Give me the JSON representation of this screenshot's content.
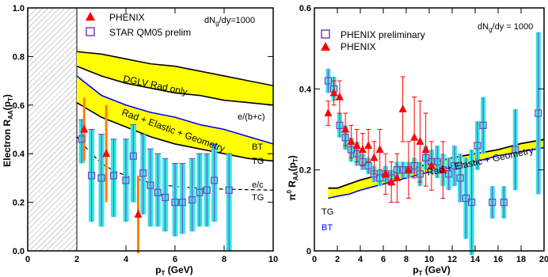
{
  "colors": {
    "phenix": "#ff0000",
    "star": "#7f3fbf",
    "cyan_band": "#33e6e6",
    "yellow_band": "#ffff00",
    "blue_curve": "#0000ff",
    "hatch": "#9a9a9a"
  },
  "chart_data": [
    {
      "type": "scatter",
      "panel": "left",
      "xlabel": "p_T (GeV)",
      "ylabel": "Electron R_AA(p_T)",
      "xlim": [
        0,
        10
      ],
      "ylim": [
        0,
        1.0
      ],
      "xticks": [
        0,
        2,
        4,
        6,
        8,
        10
      ],
      "yticks": [
        0.0,
        0.2,
        0.4,
        0.6,
        0.8,
        1.0
      ],
      "ytick_labels": [
        "0.0",
        "0.2",
        "0.4",
        "0.6",
        "0.8",
        "1.0"
      ],
      "grid": false,
      "legend_position": "top-left",
      "annotation": "dN_g/dy=1000",
      "excluded_region": [
        0,
        2
      ],
      "series": [
        {
          "name": "PHENIX",
          "marker": "triangle",
          "x": [
            2.3,
            3.2,
            4.5
          ],
          "y": [
            0.5,
            0.4,
            0.15
          ],
          "err": [
            0.13,
            0.2,
            0.16
          ]
        },
        {
          "name": "STAR QM05 prelim",
          "marker": "open-square",
          "x": [
            2.2,
            2.6,
            3.0,
            3.5,
            4.0,
            4.3,
            4.7,
            5.0,
            5.3,
            5.6,
            6.0,
            6.3,
            6.7,
            7.0,
            7.3,
            7.6,
            8.2
          ],
          "y": [
            0.46,
            0.31,
            0.3,
            0.31,
            0.29,
            0.39,
            0.32,
            0.27,
            0.24,
            0.22,
            0.2,
            0.2,
            0.21,
            0.24,
            0.25,
            0.29,
            0.25
          ],
          "sys_low": [
            0.36,
            0.12,
            0.1,
            0.14,
            0.12,
            0.2,
            0.15,
            0.1,
            0.1,
            0.08,
            0.06,
            0.07,
            0.08,
            0.1,
            0.1,
            0.12,
            0.0
          ],
          "sys_high": [
            0.54,
            0.5,
            0.48,
            0.46,
            0.46,
            0.52,
            0.48,
            0.42,
            0.4,
            0.38,
            0.36,
            0.36,
            0.38,
            0.4,
            0.4,
            0.44,
            0.4
          ]
        }
      ],
      "bands": [
        {
          "label": "DGLV Rad only",
          "x": [
            2,
            3,
            4,
            5,
            6,
            7,
            8,
            9,
            10
          ],
          "upper": [
            0.82,
            0.81,
            0.79,
            0.77,
            0.76,
            0.74,
            0.72,
            0.7,
            0.68
          ],
          "lower": [
            0.76,
            0.72,
            0.69,
            0.67,
            0.65,
            0.64,
            0.62,
            0.61,
            0.6
          ]
        },
        {
          "label": "Rad + Elastic + Geometry",
          "x": [
            2,
            3,
            4,
            5,
            6,
            7,
            8,
            9,
            10
          ],
          "upper": [
            0.72,
            0.64,
            0.6,
            0.57,
            0.55,
            0.52,
            0.5,
            0.47,
            0.44
          ],
          "lower": [
            0.61,
            0.55,
            0.51,
            0.47,
            0.44,
            0.42,
            0.4,
            0.38,
            0.37
          ]
        }
      ],
      "curve_labels": [
        "e/(b+c)",
        "BT",
        "TG",
        "e/c",
        "TG"
      ],
      "dashed_curve": {
        "x": [
          2,
          2.5,
          3,
          3.5,
          4,
          5,
          6,
          7,
          8,
          9,
          10
        ],
        "y": [
          0.47,
          0.41,
          0.36,
          0.33,
          0.31,
          0.28,
          0.265,
          0.258,
          0.254,
          0.252,
          0.25
        ]
      }
    },
    {
      "type": "scatter",
      "panel": "right",
      "xlabel": "p_T (GeV)",
      "ylabel": "π0 R_AA(p_T)",
      "xlim": [
        0,
        20
      ],
      "ylim": [
        0,
        0.6
      ],
      "xticks": [
        0,
        2,
        4,
        6,
        8,
        10,
        12,
        14,
        16,
        18,
        20
      ],
      "yticks": [
        0.0,
        0.2,
        0.4,
        0.6
      ],
      "ytick_labels": [
        "0",
        "0.2",
        "0.4",
        "0.6"
      ],
      "grid": false,
      "legend_position": "top-left",
      "annotation": "dN_g/dy = 1000",
      "series": [
        {
          "name": "PHENIX preliminary",
          "marker": "open-square",
          "x": [
            1.2,
            1.7,
            2.2,
            2.7,
            3.2,
            3.7,
            4.2,
            4.7,
            5.2,
            5.7,
            6.2,
            6.7,
            7.2,
            7.7,
            8.2,
            8.7,
            9.2,
            9.7,
            10.2,
            10.7,
            11.2,
            11.7,
            12.2,
            12.7,
            13.2,
            13.7,
            14.2,
            14.7,
            15.5,
            16.5,
            17.5,
            19.5
          ],
          "y": [
            0.42,
            0.4,
            0.31,
            0.28,
            0.25,
            0.24,
            0.22,
            0.21,
            0.19,
            0.18,
            0.19,
            0.18,
            0.2,
            0.2,
            0.2,
            0.21,
            0.19,
            0.23,
            0.22,
            0.22,
            0.2,
            0.19,
            0.21,
            0.18,
            0.13,
            0.12,
            0.26,
            0.31,
            0.12,
            0.12,
            0.25,
            0.34
          ],
          "err": [
            0.03,
            0.03,
            0.03,
            0.03,
            0.03,
            0.03,
            0.02,
            0.02,
            0.02,
            0.02,
            0.02,
            0.02,
            0.02,
            0.02,
            0.02,
            0.02,
            0.03,
            0.03,
            0.03,
            0.04,
            0.04,
            0.04,
            0.05,
            0.06,
            0.1,
            0.13,
            0.06,
            0.07,
            0.04,
            0.04,
            0.1,
            0.2
          ]
        },
        {
          "name": "PHENIX",
          "marker": "triangle",
          "x": [
            1.2,
            1.7,
            2.2,
            2.7,
            3.2,
            3.7,
            4.2,
            4.7,
            5.2,
            5.7,
            6.2,
            6.7,
            7.2,
            7.7,
            8.2,
            8.7,
            9.2,
            9.7,
            10.2,
            11.2
          ],
          "y": [
            0.34,
            0.39,
            0.38,
            0.3,
            0.27,
            0.26,
            0.25,
            0.26,
            0.23,
            0.25,
            0.19,
            0.17,
            0.18,
            0.35,
            0.2,
            0.28,
            0.27,
            0.25,
            0.21,
            0.2
          ],
          "err": [
            0.03,
            0.03,
            0.04,
            0.04,
            0.04,
            0.04,
            0.04,
            0.04,
            0.04,
            0.05,
            0.05,
            0.05,
            0.06,
            0.08,
            0.07,
            0.1,
            0.1,
            0.09,
            0.06,
            0.07
          ]
        }
      ],
      "bands": [
        {
          "label": "Rad + Elastic + Geometry",
          "x": [
            1.2,
            2,
            3,
            4,
            6,
            8,
            10,
            12,
            14,
            16,
            18,
            20
          ],
          "upper": [
            0.155,
            0.155,
            0.165,
            0.175,
            0.19,
            0.2,
            0.215,
            0.23,
            0.24,
            0.25,
            0.265,
            0.275
          ],
          "lower": [
            0.13,
            0.135,
            0.14,
            0.15,
            0.165,
            0.18,
            0.195,
            0.21,
            0.22,
            0.235,
            0.245,
            0.255
          ]
        }
      ],
      "curve_labels": [
        "TG",
        "BT"
      ]
    }
  ]
}
